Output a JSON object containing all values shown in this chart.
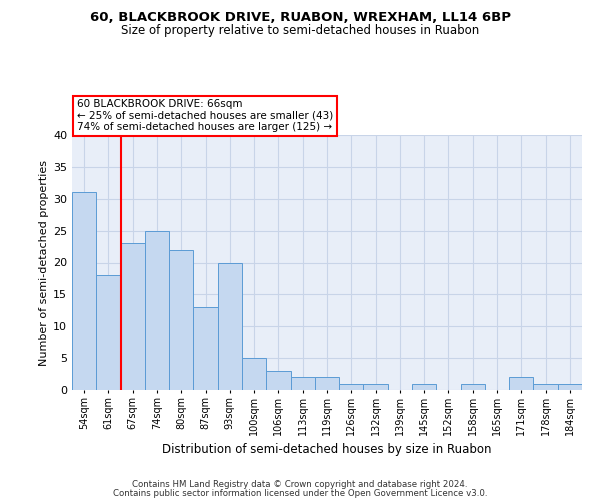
{
  "title1": "60, BLACKBROOK DRIVE, RUABON, WREXHAM, LL14 6BP",
  "title2": "Size of property relative to semi-detached houses in Ruabon",
  "xlabel": "Distribution of semi-detached houses by size in Ruabon",
  "ylabel": "Number of semi-detached properties",
  "categories": [
    "54sqm",
    "61sqm",
    "67sqm",
    "74sqm",
    "80sqm",
    "87sqm",
    "93sqm",
    "100sqm",
    "106sqm",
    "113sqm",
    "119sqm",
    "126sqm",
    "132sqm",
    "139sqm",
    "145sqm",
    "152sqm",
    "158sqm",
    "165sqm",
    "171sqm",
    "178sqm",
    "184sqm"
  ],
  "values": [
    31,
    18,
    23,
    25,
    22,
    13,
    20,
    5,
    3,
    2,
    2,
    1,
    1,
    0,
    1,
    0,
    1,
    0,
    2,
    1,
    1
  ],
  "bar_color": "#c5d8f0",
  "bar_edge_color": "#5b9bd5",
  "property_size": 66,
  "pct_smaller": 25,
  "count_smaller": 43,
  "pct_larger": 74,
  "count_larger": 125,
  "annotation_box_text1": "60 BLACKBROOK DRIVE: 66sqm",
  "annotation_box_text2": "← 25% of semi-detached houses are smaller (43)",
  "annotation_box_text3": "74% of semi-detached houses are larger (125) →",
  "footer1": "Contains HM Land Registry data © Crown copyright and database right 2024.",
  "footer2": "Contains public sector information licensed under the Open Government Licence v3.0.",
  "ylim": [
    0,
    40
  ],
  "yticks": [
    0,
    5,
    10,
    15,
    20,
    25,
    30,
    35,
    40
  ],
  "grid_color": "#c8d4e8",
  "background_color": "#e8eef8"
}
